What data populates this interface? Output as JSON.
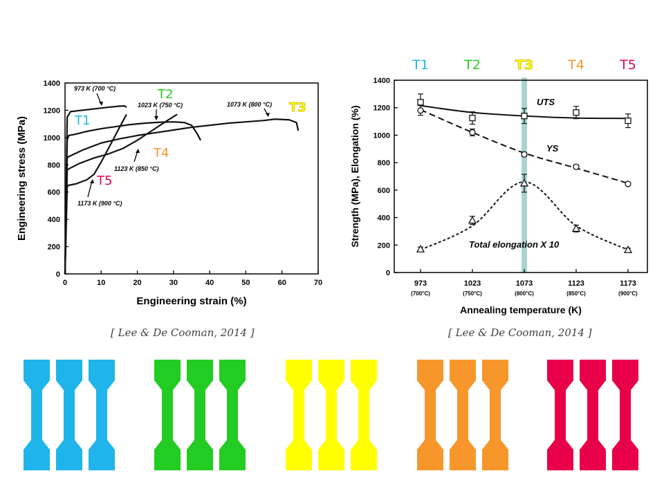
{
  "colors": {
    "T1": "#1fb4ea",
    "T2": "#22cc22",
    "T3": "#ffff00",
    "T4": "#f7962a",
    "T5": "#e8004a",
    "band": "#a9d3d3"
  },
  "citations": [
    "[ Lee & De Cooman, 2014 ]",
    "[ Lee & De Cooman, 2014 ]"
  ],
  "chart_data": [
    {
      "type": "line",
      "title": "",
      "xlabel": "Engineering strain (%)",
      "ylabel": "Engineering stress (MPa)",
      "xlim": [
        0,
        70
      ],
      "ylim": [
        0,
        1400
      ],
      "xticks": [
        "0",
        "10",
        "20",
        "30",
        "40",
        "50",
        "60",
        "70"
      ],
      "yticks": [
        "0",
        "200",
        "400",
        "600",
        "800",
        "1000",
        "1200",
        "1400"
      ],
      "series": [
        {
          "name": "973 K (700 °C)",
          "tag": "T1",
          "x": [
            0,
            0.6,
            1.5,
            4,
            8,
            12,
            15,
            16.5,
            17
          ],
          "y": [
            0,
            1150,
            1190,
            1198,
            1210,
            1222,
            1230,
            1232,
            1222
          ]
        },
        {
          "name": "1023 K (750 °C)",
          "tag": "T2",
          "x": [
            0,
            0.6,
            1,
            3,
            6,
            10,
            14,
            18,
            22,
            26,
            30,
            33,
            35,
            36.5,
            37.5
          ],
          "y": [
            0,
            980,
            1015,
            1025,
            1045,
            1065,
            1080,
            1095,
            1105,
            1112,
            1115,
            1110,
            1090,
            1030,
            980
          ]
        },
        {
          "name": "1073 K (800 °C)",
          "tag": "T3",
          "x": [
            0,
            0.6,
            1,
            5,
            10,
            15,
            20,
            25,
            30,
            35,
            40,
            45,
            50,
            55,
            58,
            62,
            64,
            64.5
          ],
          "y": [
            0,
            850,
            860,
            910,
            960,
            990,
            1015,
            1035,
            1055,
            1075,
            1090,
            1105,
            1115,
            1125,
            1135,
            1130,
            1110,
            1050
          ]
        },
        {
          "name": "1123 K (850 °C)",
          "tag": "T4",
          "x": [
            0,
            0.6,
            1,
            4,
            8,
            12,
            16,
            20,
            24,
            28,
            31
          ],
          "y": [
            0,
            760,
            770,
            810,
            850,
            880,
            920,
            980,
            1050,
            1120,
            1170
          ]
        },
        {
          "name": "1173 K (900 °C)",
          "tag": "T5",
          "x": [
            0,
            0.6,
            1,
            3,
            6,
            8,
            10,
            12,
            14,
            16,
            17
          ],
          "y": [
            0,
            640,
            650,
            660,
            690,
            730,
            820,
            920,
            1020,
            1120,
            1170
          ]
        }
      ],
      "annotations": [
        {
          "text": "973 K (700 °C)"
        },
        {
          "text": "1023 K (750 °C)"
        },
        {
          "text": "1073 K (800 °C)"
        },
        {
          "text": "1123 K (850 °C)"
        },
        {
          "text": "1173 K (900 °C)"
        }
      ],
      "tags": [
        "T1",
        "T2",
        "T3",
        "T4",
        "T5"
      ]
    },
    {
      "type": "line",
      "title": "",
      "xlabel": "Annealing temperature (K)",
      "ylabel": "Strength (MPa), Elongation (%)",
      "ylim": [
        0,
        1400
      ],
      "categories": [
        "973",
        "1023",
        "1073",
        "1123",
        "1173"
      ],
      "category_sublabels": [
        "(700°C)",
        "(750°C)",
        "(800°C)",
        "(850°C)",
        "(900°C)"
      ],
      "yticks": [
        "0",
        "200",
        "400",
        "600",
        "800",
        "1000",
        "1200",
        "1400"
      ],
      "top_labels": [
        "T1",
        "T2",
        "T3",
        "T4",
        "T5"
      ],
      "highlight_category": "1073",
      "series": [
        {
          "name": "UTS",
          "marker": "square",
          "line": "solid",
          "values": [
            1240,
            1125,
            1140,
            1165,
            1105
          ],
          "errors": [
            60,
            45,
            55,
            45,
            50
          ],
          "fit": [
            1215,
            1165,
            1140,
            1125,
            1122
          ]
        },
        {
          "name": "YS",
          "marker": "circle",
          "line": "dashed",
          "values": [
            1180,
            1020,
            860,
            770,
            645
          ],
          "errors": [
            35,
            25,
            15,
            12,
            10
          ],
          "fit": [
            1185,
            1020,
            870,
            760,
            650
          ]
        },
        {
          "name": "Total elongation X 10",
          "marker": "triangle",
          "line": "dotted",
          "values": [
            170,
            380,
            650,
            320,
            165
          ],
          "errors": [
            15,
            30,
            65,
            25,
            12
          ],
          "fit": [
            165,
            340,
            660,
            340,
            165
          ]
        }
      ],
      "series_labels": [
        "UTS",
        "YS",
        "Total elongation X 10"
      ]
    }
  ]
}
